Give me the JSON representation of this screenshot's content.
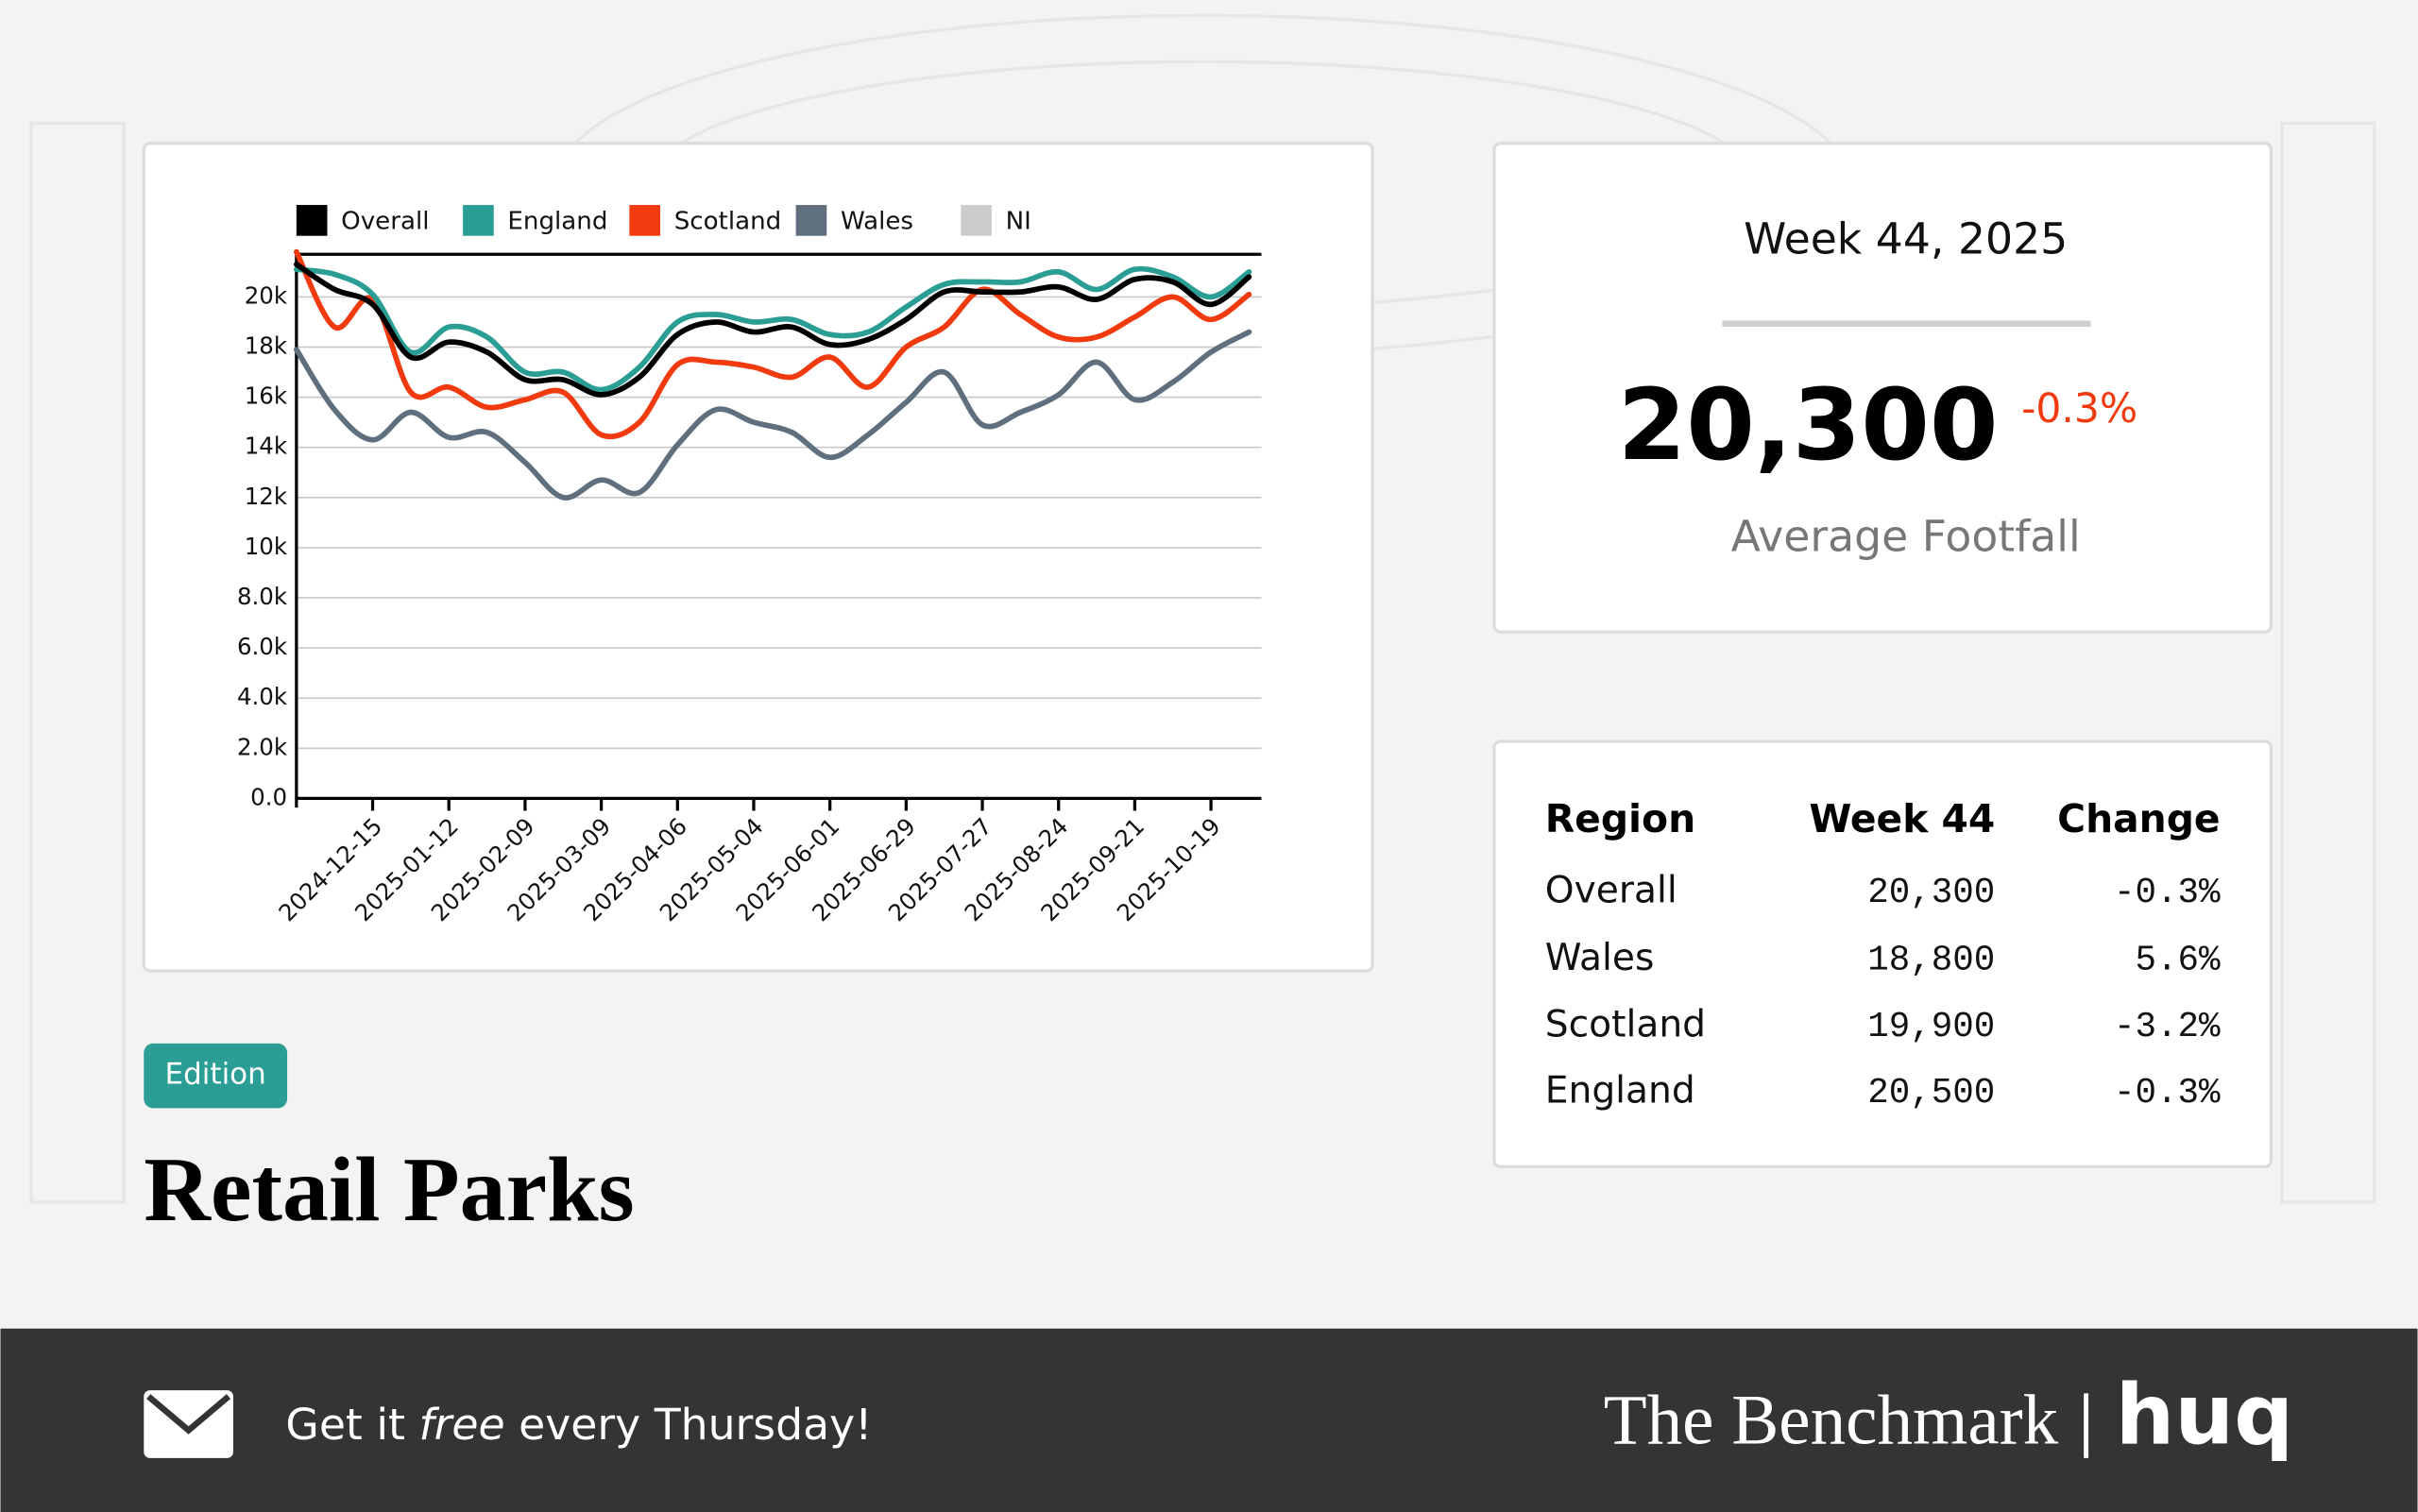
{
  "chart_data": {
    "type": "line",
    "x": [
      "2024-11-17",
      "2024-12-01",
      "2024-12-15",
      "2024-12-29",
      "2025-01-12",
      "2025-01-26",
      "2025-02-09",
      "2025-02-23",
      "2025-03-09",
      "2025-03-23",
      "2025-04-06",
      "2025-04-20",
      "2025-05-04",
      "2025-05-18",
      "2025-06-01",
      "2025-06-15",
      "2025-06-29",
      "2025-07-13",
      "2025-07-27",
      "2025-08-10",
      "2025-08-24",
      "2025-09-07",
      "2025-09-21",
      "2025-10-05",
      "2025-10-19",
      "2025-11-02"
    ],
    "series": [
      {
        "name": "Overall",
        "color": "#000000",
        "values": [
          21300,
          20300,
          19700,
          17600,
          18200,
          17800,
          16700,
          16700,
          16100,
          16800,
          18500,
          19000,
          18600,
          18800,
          18100,
          18300,
          19100,
          20200,
          20200,
          20200,
          20400,
          19900,
          20700,
          20600,
          19700,
          20800
        ]
      },
      {
        "name": "England",
        "color": "#2a9d95",
        "values": [
          21100,
          20900,
          20100,
          17800,
          18800,
          18400,
          17000,
          17000,
          16300,
          17200,
          19000,
          19300,
          19000,
          19100,
          18500,
          18600,
          19600,
          20500,
          20600,
          20600,
          21000,
          20300,
          21100,
          20800,
          20000,
          21000
        ]
      },
      {
        "name": "Scotland",
        "color": "#f23a0f",
        "values": [
          21800,
          18800,
          19900,
          16200,
          16400,
          15600,
          15900,
          16200,
          14500,
          15000,
          17300,
          17400,
          17200,
          16800,
          17600,
          16400,
          18000,
          18800,
          20300,
          19300,
          18400,
          18400,
          19200,
          20000,
          19100,
          20100
        ]
      },
      {
        "name": "Wales",
        "color": "#5f6f7e",
        "values": [
          17900,
          15500,
          14300,
          15400,
          14400,
          14600,
          13400,
          12000,
          12700,
          12200,
          14100,
          15500,
          15000,
          14600,
          13600,
          14500,
          15800,
          17000,
          14900,
          15400,
          16100,
          17400,
          15900,
          16600,
          17800,
          18600
        ]
      },
      {
        "name": "NI",
        "color": "#cccccc",
        "values": [
          null,
          null,
          null,
          null,
          null,
          null,
          null,
          null,
          null,
          null,
          null,
          null,
          null,
          null,
          null,
          null,
          null,
          null,
          null,
          null,
          null,
          null,
          null,
          null,
          null,
          null
        ]
      }
    ],
    "xlim": [
      "2024-11-17",
      "2025-11-02"
    ],
    "xticks": [
      "2024-12-15",
      "2025-01-12",
      "2025-02-09",
      "2025-03-09",
      "2025-04-06",
      "2025-05-04",
      "2025-06-01",
      "2025-06-29",
      "2025-07-27",
      "2025-08-24",
      "2025-09-21",
      "2025-10-19"
    ],
    "ylim": [
      0,
      21700
    ],
    "yticks": [
      {
        "value": 0,
        "label": "0.0"
      },
      {
        "value": 2000,
        "label": "2.0k"
      },
      {
        "value": 4000,
        "label": "4.0k"
      },
      {
        "value": 6000,
        "label": "6.0k"
      },
      {
        "value": 8000,
        "label": "8.0k"
      },
      {
        "value": 10000,
        "label": "10k"
      },
      {
        "value": 12000,
        "label": "12k"
      },
      {
        "value": 14000,
        "label": "14k"
      },
      {
        "value": 16000,
        "label": "16k"
      },
      {
        "value": 18000,
        "label": "18k"
      },
      {
        "value": 20000,
        "label": "20k"
      }
    ],
    "grid": true
  },
  "stat": {
    "title": "Week 44, 2025",
    "value": "20,300",
    "change": "-0.3%",
    "label": "Average Footfall"
  },
  "table": {
    "header": [
      "Region",
      "Week 44",
      "Change"
    ],
    "rows": [
      [
        "Overall",
        "20,300",
        "-0.3%"
      ],
      [
        "Wales",
        "18,800",
        "5.6%"
      ],
      [
        "Scotland",
        "19,900",
        "-3.2%"
      ],
      [
        "England",
        "20,500",
        "-0.3%"
      ]
    ]
  },
  "badge": "Edition",
  "heading": "Retail Parks",
  "footer": {
    "cta": [
      "Get it ",
      "free",
      " every Thursday!"
    ],
    "brand": "The Benchmark",
    "logo": "huq"
  }
}
